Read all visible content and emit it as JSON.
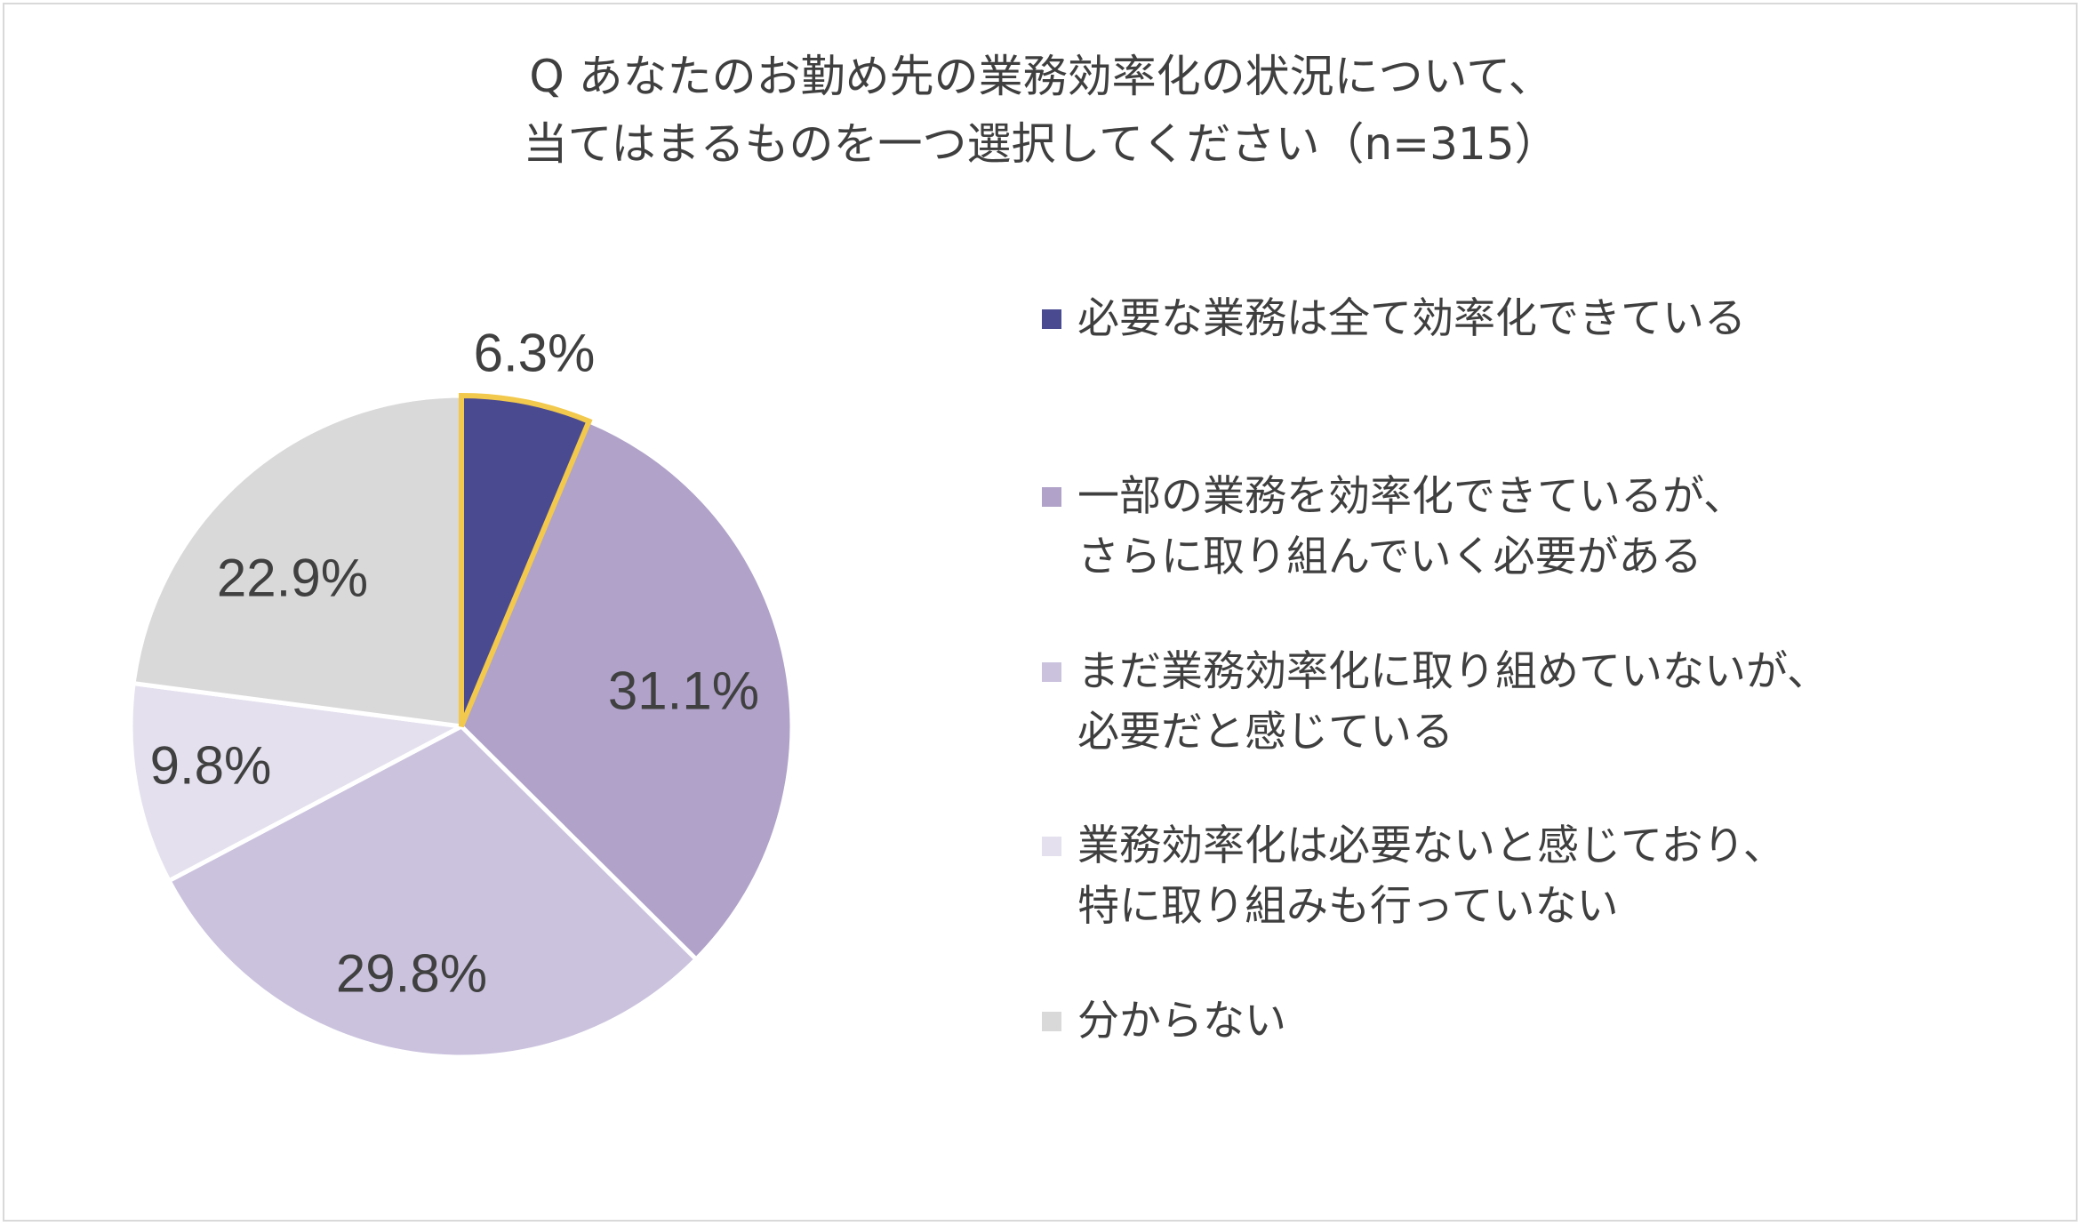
{
  "title_lines": [
    "Q あなたのお勤め先の業務効率化の状況について、",
    "当てはまるものを一つ選択してください（n=315）"
  ],
  "chart_data": {
    "type": "pie",
    "title": "Q あなたのお勤め先の業務効率化の状況について、当てはまるものを一つ選択してください（n=315）",
    "n": 315,
    "unit": "%",
    "legend_position": "right",
    "slices": [
      {
        "label_lines": [
          "必要な業務は全て効率化できている"
        ],
        "value": 6.3,
        "display": "6.3%",
        "color": "#4a4a91",
        "highlight": true
      },
      {
        "label_lines": [
          "一部の業務を効率化できているが、",
          "さらに取り組んでいく必要がある"
        ],
        "value": 31.1,
        "display": "31.1%",
        "color": "#b0a2c9"
      },
      {
        "label_lines": [
          "まだ業務効率化に取り組めていないが、",
          "必要だと感じている"
        ],
        "value": 29.8,
        "display": "29.8%",
        "color": "#cbc2de"
      },
      {
        "label_lines": [
          "業務効率化は必要ないと感じており、",
          "特に取り組みも行っていない"
        ],
        "value": 9.8,
        "display": "9.8%",
        "color": "#e4e0ee"
      },
      {
        "label_lines": [
          "分からない"
        ],
        "value": 22.9,
        "display": "22.9%",
        "color": "#d9d9d9"
      }
    ],
    "highlight_outline_color": "#f2c94c"
  }
}
